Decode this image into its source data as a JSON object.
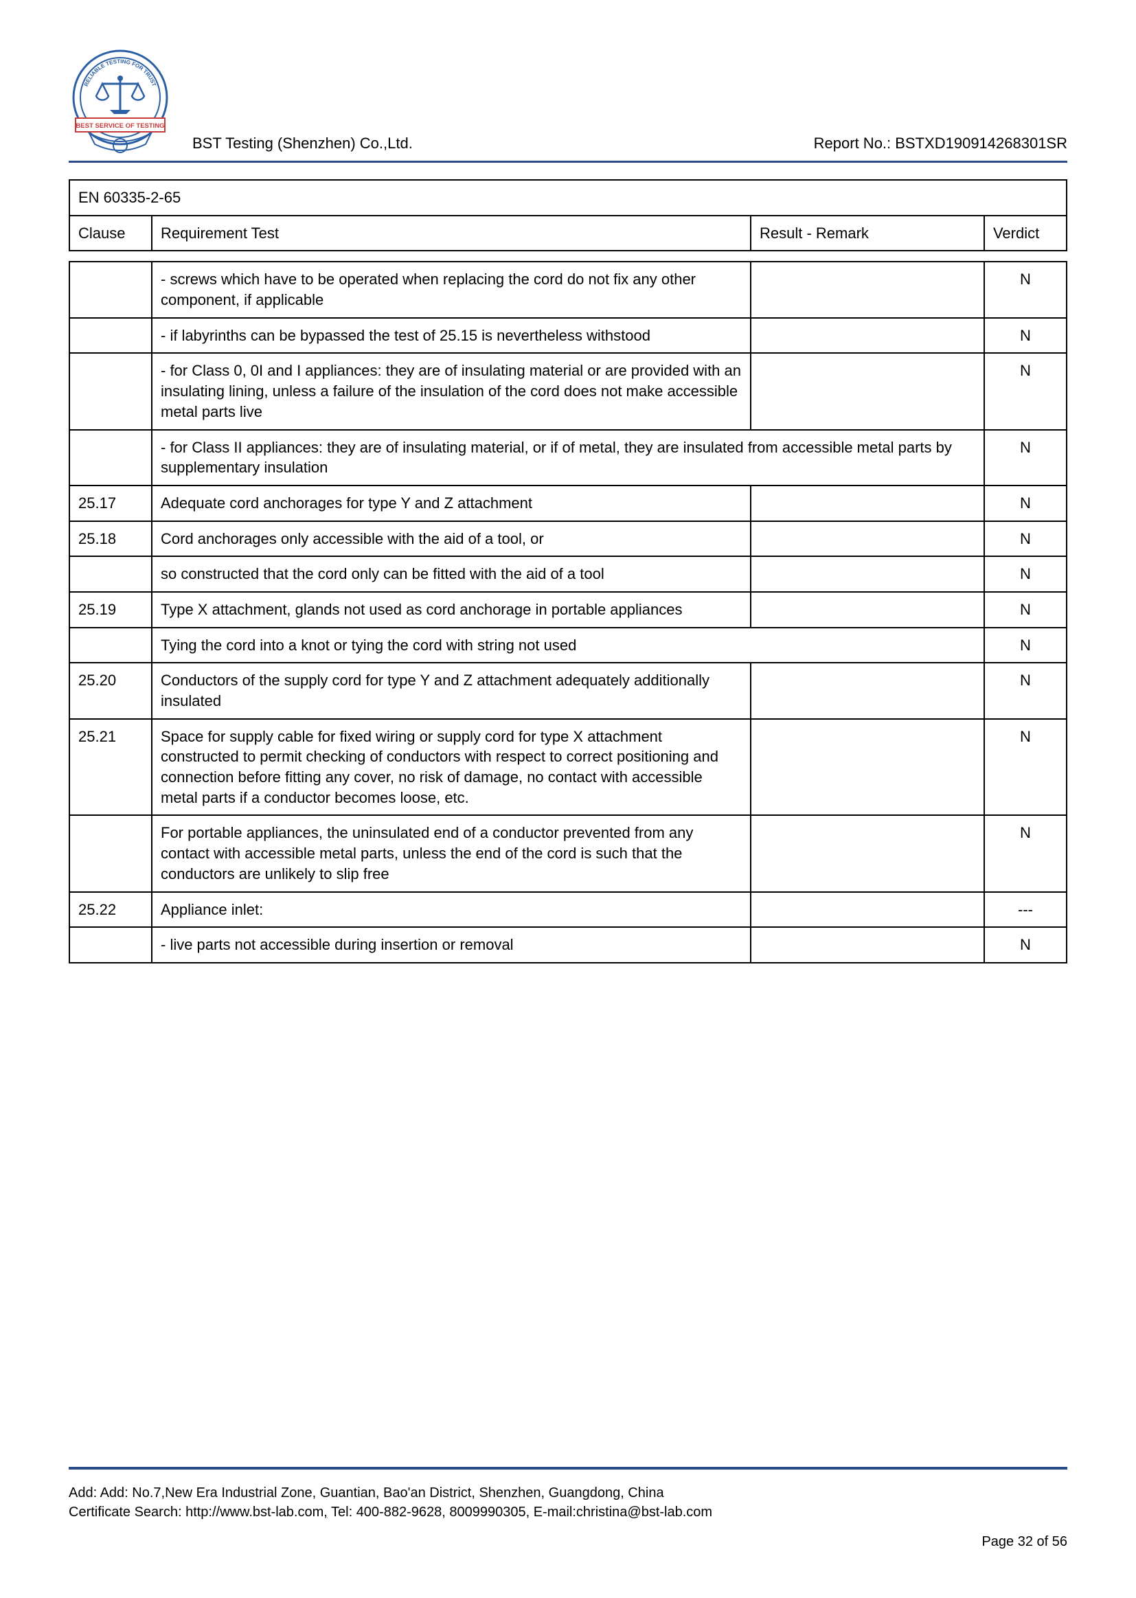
{
  "header": {
    "company": "BST Testing (Shenzhen) Co.,Ltd.",
    "report_no_label": "Report No.: BSTXD190914268301SR",
    "logo": {
      "outer_text_top": "RELIABLE TESTING FOR TRUST",
      "banner_text": "BEST SERVICE OF TESTING",
      "stroke_color": "#2b5fa4",
      "banner_color": "#c73a3a"
    }
  },
  "table": {
    "standard": "EN 60335-2-65",
    "headers": {
      "clause": "Clause",
      "requirement": "Requirement Test",
      "result": "Result - Remark",
      "verdict": "Verdict"
    },
    "rows": [
      {
        "clause": "",
        "req": "- screws which have to be operated when replacing the cord do not fix any other component, if applicable",
        "result": "",
        "verdict": "N",
        "span": false
      },
      {
        "clause": "",
        "req": "- if labyrinths can be bypassed the test of 25.15 is nevertheless withstood",
        "result": "",
        "verdict": "N",
        "span": false
      },
      {
        "clause": "",
        "req": "- for Class 0, 0I and I appliances: they are of insulating material or are provided with an insulating lining, unless a failure of the insulation of the cord does not make accessible metal parts live",
        "result": "",
        "verdict": "N",
        "span": false
      },
      {
        "clause": "",
        "req": "- for Class II appliances: they are of insulating material, or if of metal, they are insulated from accessible metal parts by supplementary insulation",
        "result": "",
        "verdict": "N",
        "span": true
      },
      {
        "clause": "25.17",
        "req": "Adequate cord anchorages for type Y and Z attachment",
        "result": "",
        "verdict": "N",
        "span": false
      },
      {
        "clause": "25.18",
        "req": "Cord anchorages only accessible with the aid of a tool, or",
        "result": "",
        "verdict": "N",
        "span": false
      },
      {
        "clause": "",
        "req": "so constructed that the cord only can be fitted with the aid of a tool",
        "result": "",
        "verdict": "N",
        "span": false
      },
      {
        "clause": "25.19",
        "req": "Type X attachment, glands not used as cord anchorage in portable appliances",
        "result": "",
        "verdict": "N",
        "span": false
      },
      {
        "clause": "",
        "req": "Tying the cord into a knot or tying the cord with string not used",
        "result": "",
        "verdict": "N",
        "span": true
      },
      {
        "clause": "25.20",
        "req": "Conductors of the supply cord for type Y and Z attachment adequately additionally insulated",
        "result": "",
        "verdict": "N",
        "span": false
      },
      {
        "clause": "25.21",
        "req": "Space for supply cable for fixed wiring or supply cord for type X attachment constructed to permit checking of conductors with respect to correct positioning and connection before fitting any cover, no risk of damage, no contact with accessible metal parts if a conductor becomes loose, etc.",
        "result": "",
        "verdict": "N",
        "span": false
      },
      {
        "clause": "",
        "req": "For portable appliances, the uninsulated end of a conductor prevented from any contact with accessible metal parts, unless the end of the cord is such that the conductors are unlikely to slip free",
        "result": "",
        "verdict": "N",
        "span": false
      },
      {
        "clause": "25.22",
        "req": "Appliance inlet:",
        "result": "",
        "verdict": "---",
        "span": false
      },
      {
        "clause": "",
        "req": "- live parts not accessible during insertion or removal",
        "result": "",
        "verdict": "N",
        "span": false
      }
    ]
  },
  "footer": {
    "line1": "Add: Add: No.7,New Era Industrial Zone, Guantian, Bao'an District, Shenzhen, Guangdong, China",
    "line2_a": "Certificate Search: http://www.bst-lab.com",
    "line2_b": " Tel: 400-882-9628, 8009990305, E-mail:christina@bst-lab.com",
    "page": "Page 32 of 56"
  }
}
